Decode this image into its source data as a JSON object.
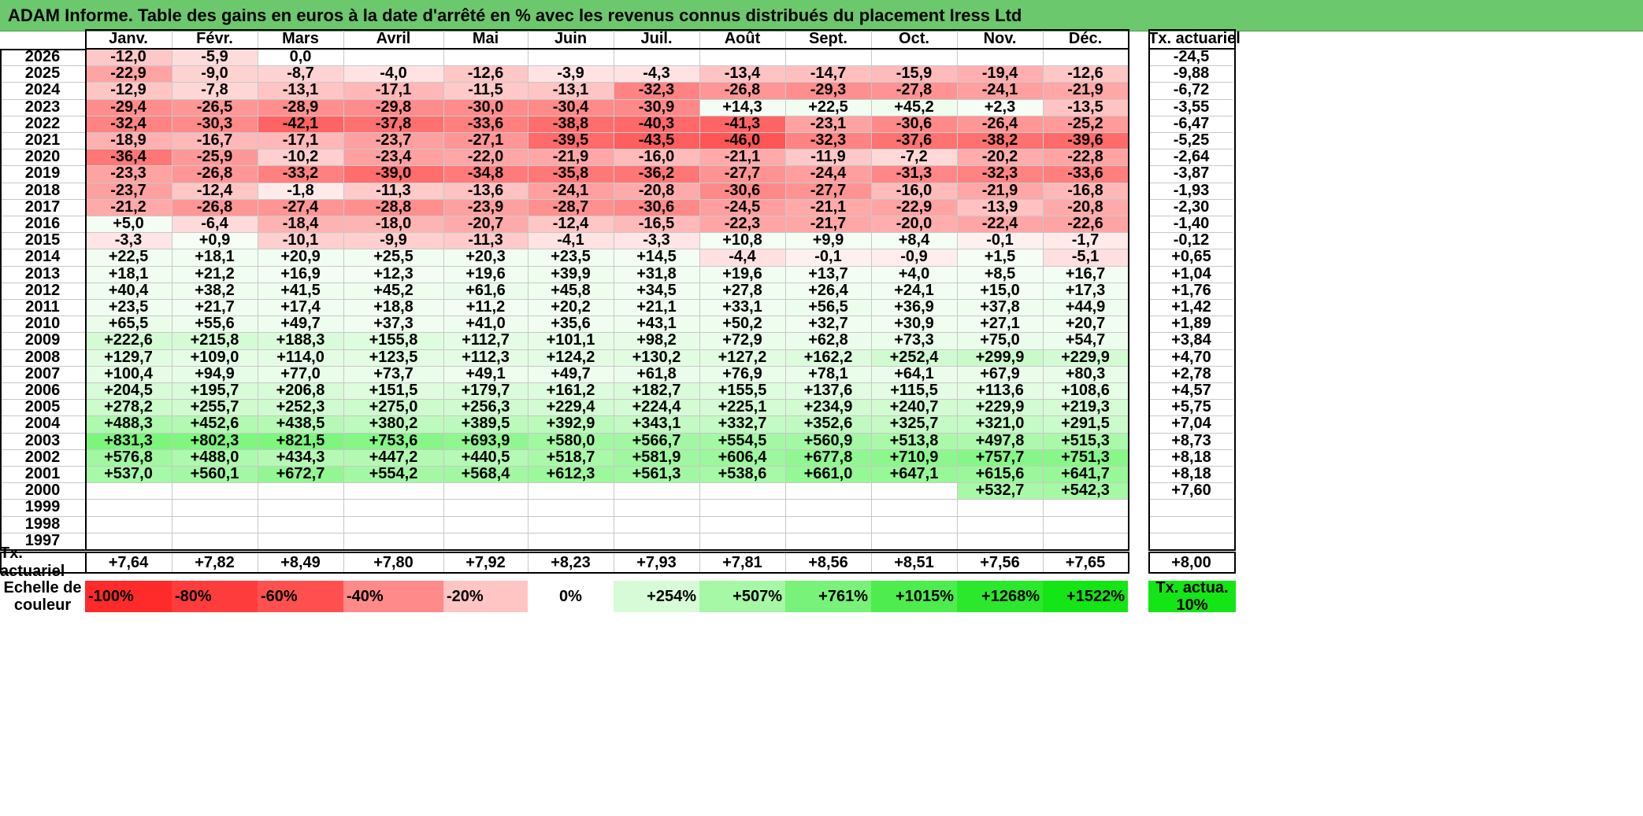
{
  "title": "ADAM Informe. Table des gains en euros à la date d'arrêté en % avec les revenus connus distribués du placement Iress Ltd",
  "months": [
    "Janv.",
    "Févr.",
    "Mars",
    "Avril",
    "Mai",
    "Juin",
    "Juil.",
    "Août",
    "Sept.",
    "Oct.",
    "Nov.",
    "Déc."
  ],
  "actuarial_header": "Tx. actuariel",
  "rows": [
    {
      "year": "2026",
      "values": [
        "-12,0",
        "-5,9",
        "0,0",
        "",
        "",
        "",
        "",
        "",
        "",
        "",
        "",
        ""
      ],
      "actuarial": "-24,5"
    },
    {
      "year": "2025",
      "values": [
        "-22,9",
        "-9,0",
        "-8,7",
        "-4,0",
        "-12,6",
        "-3,9",
        "-4,3",
        "-13,4",
        "-14,7",
        "-15,9",
        "-19,4",
        "-12,6"
      ],
      "actuarial": "-9,88"
    },
    {
      "year": "2024",
      "values": [
        "-12,9",
        "-7,8",
        "-13,1",
        "-17,1",
        "-11,5",
        "-13,1",
        "-32,3",
        "-26,8",
        "-29,3",
        "-27,8",
        "-24,1",
        "-21,9"
      ],
      "actuarial": "-6,72"
    },
    {
      "year": "2023",
      "values": [
        "-29,4",
        "-26,5",
        "-28,9",
        "-29,8",
        "-30,0",
        "-30,4",
        "-30,9",
        "+14,3",
        "+22,5",
        "+45,2",
        "+2,3",
        "-13,5"
      ],
      "actuarial": "-3,55"
    },
    {
      "year": "2022",
      "values": [
        "-32,4",
        "-30,3",
        "-42,1",
        "-37,8",
        "-33,6",
        "-38,8",
        "-40,3",
        "-41,3",
        "-23,1",
        "-30,6",
        "-26,4",
        "-25,2"
      ],
      "actuarial": "-6,47"
    },
    {
      "year": "2021",
      "values": [
        "-18,9",
        "-16,7",
        "-17,1",
        "-23,7",
        "-27,1",
        "-39,5",
        "-43,5",
        "-46,0",
        "-32,3",
        "-37,6",
        "-38,2",
        "-39,6"
      ],
      "actuarial": "-5,25"
    },
    {
      "year": "2020",
      "values": [
        "-36,4",
        "-25,9",
        "-10,2",
        "-23,4",
        "-22,0",
        "-21,9",
        "-16,0",
        "-21,1",
        "-11,9",
        "-7,2",
        "-20,2",
        "-22,8"
      ],
      "actuarial": "-2,64"
    },
    {
      "year": "2019",
      "values": [
        "-23,3",
        "-26,8",
        "-33,2",
        "-39,0",
        "-34,8",
        "-35,8",
        "-36,2",
        "-27,7",
        "-24,4",
        "-31,3",
        "-32,3",
        "-33,6"
      ],
      "actuarial": "-3,87"
    },
    {
      "year": "2018",
      "values": [
        "-23,7",
        "-12,4",
        "-1,8",
        "-11,3",
        "-13,6",
        "-24,1",
        "-20,8",
        "-30,6",
        "-27,7",
        "-16,0",
        "-21,9",
        "-16,8"
      ],
      "actuarial": "-1,93"
    },
    {
      "year": "2017",
      "values": [
        "-21,2",
        "-26,8",
        "-27,4",
        "-28,8",
        "-23,9",
        "-28,7",
        "-30,6",
        "-24,5",
        "-21,1",
        "-22,9",
        "-13,9",
        "-20,8"
      ],
      "actuarial": "-2,30"
    },
    {
      "year": "2016",
      "values": [
        "+5,0",
        "-6,4",
        "-18,4",
        "-18,0",
        "-20,7",
        "-12,4",
        "-16,5",
        "-22,3",
        "-21,7",
        "-20,0",
        "-22,4",
        "-22,6"
      ],
      "actuarial": "-1,40"
    },
    {
      "year": "2015",
      "values": [
        "-3,3",
        "+0,9",
        "-10,1",
        "-9,9",
        "-11,3",
        "-4,1",
        "-3,3",
        "+10,8",
        "+9,9",
        "+8,4",
        "-0,1",
        "-1,7"
      ],
      "actuarial": "-0,12"
    },
    {
      "year": "2014",
      "values": [
        "+22,5",
        "+18,1",
        "+20,9",
        "+25,5",
        "+20,3",
        "+23,5",
        "+14,5",
        "-4,4",
        "-0,1",
        "-0,9",
        "+1,5",
        "-5,1"
      ],
      "actuarial": "+0,65"
    },
    {
      "year": "2013",
      "values": [
        "+18,1",
        "+21,2",
        "+16,9",
        "+12,3",
        "+19,6",
        "+39,9",
        "+31,8",
        "+19,6",
        "+13,7",
        "+4,0",
        "+8,5",
        "+16,7"
      ],
      "actuarial": "+1,04"
    },
    {
      "year": "2012",
      "values": [
        "+40,4",
        "+38,2",
        "+41,5",
        "+45,2",
        "+61,6",
        "+45,8",
        "+34,5",
        "+27,8",
        "+26,4",
        "+24,1",
        "+15,0",
        "+17,3"
      ],
      "actuarial": "+1,76"
    },
    {
      "year": "2011",
      "values": [
        "+23,5",
        "+21,7",
        "+17,4",
        "+18,8",
        "+11,2",
        "+20,2",
        "+21,1",
        "+33,1",
        "+56,5",
        "+36,9",
        "+37,8",
        "+44,9"
      ],
      "actuarial": "+1,42"
    },
    {
      "year": "2010",
      "values": [
        "+65,5",
        "+55,6",
        "+49,7",
        "+37,3",
        "+41,0",
        "+35,6",
        "+43,1",
        "+50,2",
        "+32,7",
        "+30,9",
        "+27,1",
        "+20,7"
      ],
      "actuarial": "+1,89"
    },
    {
      "year": "2009",
      "values": [
        "+222,6",
        "+215,8",
        "+188,3",
        "+155,8",
        "+112,7",
        "+101,1",
        "+98,2",
        "+72,9",
        "+62,8",
        "+73,3",
        "+75,0",
        "+54,7"
      ],
      "actuarial": "+3,84"
    },
    {
      "year": "2008",
      "values": [
        "+129,7",
        "+109,0",
        "+114,0",
        "+123,5",
        "+112,3",
        "+124,2",
        "+130,2",
        "+127,2",
        "+162,2",
        "+252,4",
        "+299,9",
        "+229,9"
      ],
      "actuarial": "+4,70"
    },
    {
      "year": "2007",
      "values": [
        "+100,4",
        "+94,9",
        "+77,0",
        "+73,7",
        "+49,1",
        "+49,7",
        "+61,8",
        "+76,9",
        "+78,1",
        "+64,1",
        "+67,9",
        "+80,3"
      ],
      "actuarial": "+2,78"
    },
    {
      "year": "2006",
      "values": [
        "+204,5",
        "+195,7",
        "+206,8",
        "+151,5",
        "+179,7",
        "+161,2",
        "+182,7",
        "+155,5",
        "+137,6",
        "+115,5",
        "+113,6",
        "+108,6"
      ],
      "actuarial": "+4,57"
    },
    {
      "year": "2005",
      "values": [
        "+278,2",
        "+255,7",
        "+252,3",
        "+275,0",
        "+256,3",
        "+229,4",
        "+224,4",
        "+225,1",
        "+234,9",
        "+240,7",
        "+229,9",
        "+219,3"
      ],
      "actuarial": "+5,75"
    },
    {
      "year": "2004",
      "values": [
        "+488,3",
        "+452,6",
        "+438,5",
        "+380,2",
        "+389,5",
        "+392,9",
        "+343,1",
        "+332,7",
        "+352,6",
        "+325,7",
        "+321,0",
        "+291,5"
      ],
      "actuarial": "+7,04"
    },
    {
      "year": "2003",
      "values": [
        "+831,3",
        "+802,3",
        "+821,5",
        "+753,6",
        "+693,9",
        "+580,0",
        "+566,7",
        "+554,5",
        "+560,9",
        "+513,8",
        "+497,8",
        "+515,3"
      ],
      "actuarial": "+8,73"
    },
    {
      "year": "2002",
      "values": [
        "+576,8",
        "+488,0",
        "+434,3",
        "+447,2",
        "+440,5",
        "+518,7",
        "+581,9",
        "+606,4",
        "+677,8",
        "+710,9",
        "+757,7",
        "+751,3"
      ],
      "actuarial": "+8,18"
    },
    {
      "year": "2001",
      "values": [
        "+537,0",
        "+560,1",
        "+672,7",
        "+554,2",
        "+568,4",
        "+612,3",
        "+561,3",
        "+538,6",
        "+661,0",
        "+647,1",
        "+615,6",
        "+641,7"
      ],
      "actuarial": "+8,18"
    },
    {
      "year": "2000",
      "values": [
        "",
        "",
        "",
        "",
        "",
        "",
        "",
        "",
        "",
        "",
        "+532,7",
        "+542,3"
      ],
      "actuarial": "+7,60"
    },
    {
      "year": "1999",
      "values": [
        "",
        "",
        "",
        "",
        "",
        "",
        "",
        "",
        "",
        "",
        "",
        ""
      ],
      "actuarial": ""
    },
    {
      "year": "1998",
      "values": [
        "",
        "",
        "",
        "",
        "",
        "",
        "",
        "",
        "",
        "",
        "",
        ""
      ],
      "actuarial": ""
    },
    {
      "year": "1997",
      "values": [
        "",
        "",
        "",
        "",
        "",
        "",
        "",
        "",
        "",
        "",
        "",
        ""
      ],
      "actuarial": ""
    }
  ],
  "summary_row": {
    "label": "Tx. actuariel",
    "values": [
      "+7,64",
      "+7,82",
      "+8,49",
      "+7,80",
      "+7,92",
      "+8,23",
      "+7,93",
      "+7,81",
      "+8,56",
      "+8,51",
      "+7,56",
      "+7,65"
    ],
    "actuarial": "+8,00"
  },
  "legend": {
    "label": "Echelle de couleur",
    "items": [
      {
        "text": "-100%",
        "color": "#ff2a2a",
        "align": "left"
      },
      {
        "text": "-80%",
        "color": "#ff3c3c",
        "align": "left"
      },
      {
        "text": "-60%",
        "color": "#ff5050",
        "align": "left"
      },
      {
        "text": "-40%",
        "color": "#ff8a8a",
        "align": "left"
      },
      {
        "text": "-20%",
        "color": "#ffc4c4",
        "align": "left"
      },
      {
        "text": "0%",
        "color": "#ffffff",
        "align": "center"
      },
      {
        "text": "+254%",
        "color": "#d6fbd6",
        "align": "right"
      },
      {
        "text": "+507%",
        "color": "#a6f7a6",
        "align": "right"
      },
      {
        "text": "+761%",
        "color": "#78f278",
        "align": "right"
      },
      {
        "text": "+1015%",
        "color": "#4ded4d",
        "align": "right"
      },
      {
        "text": "+1268%",
        "color": "#2ce82c",
        "align": "right"
      },
      {
        "text": "+1522%",
        "color": "#14e514",
        "align": "right"
      }
    ],
    "actuarial_label": "Tx. actua. 10%",
    "actuarial_color": "#14e514"
  }
}
